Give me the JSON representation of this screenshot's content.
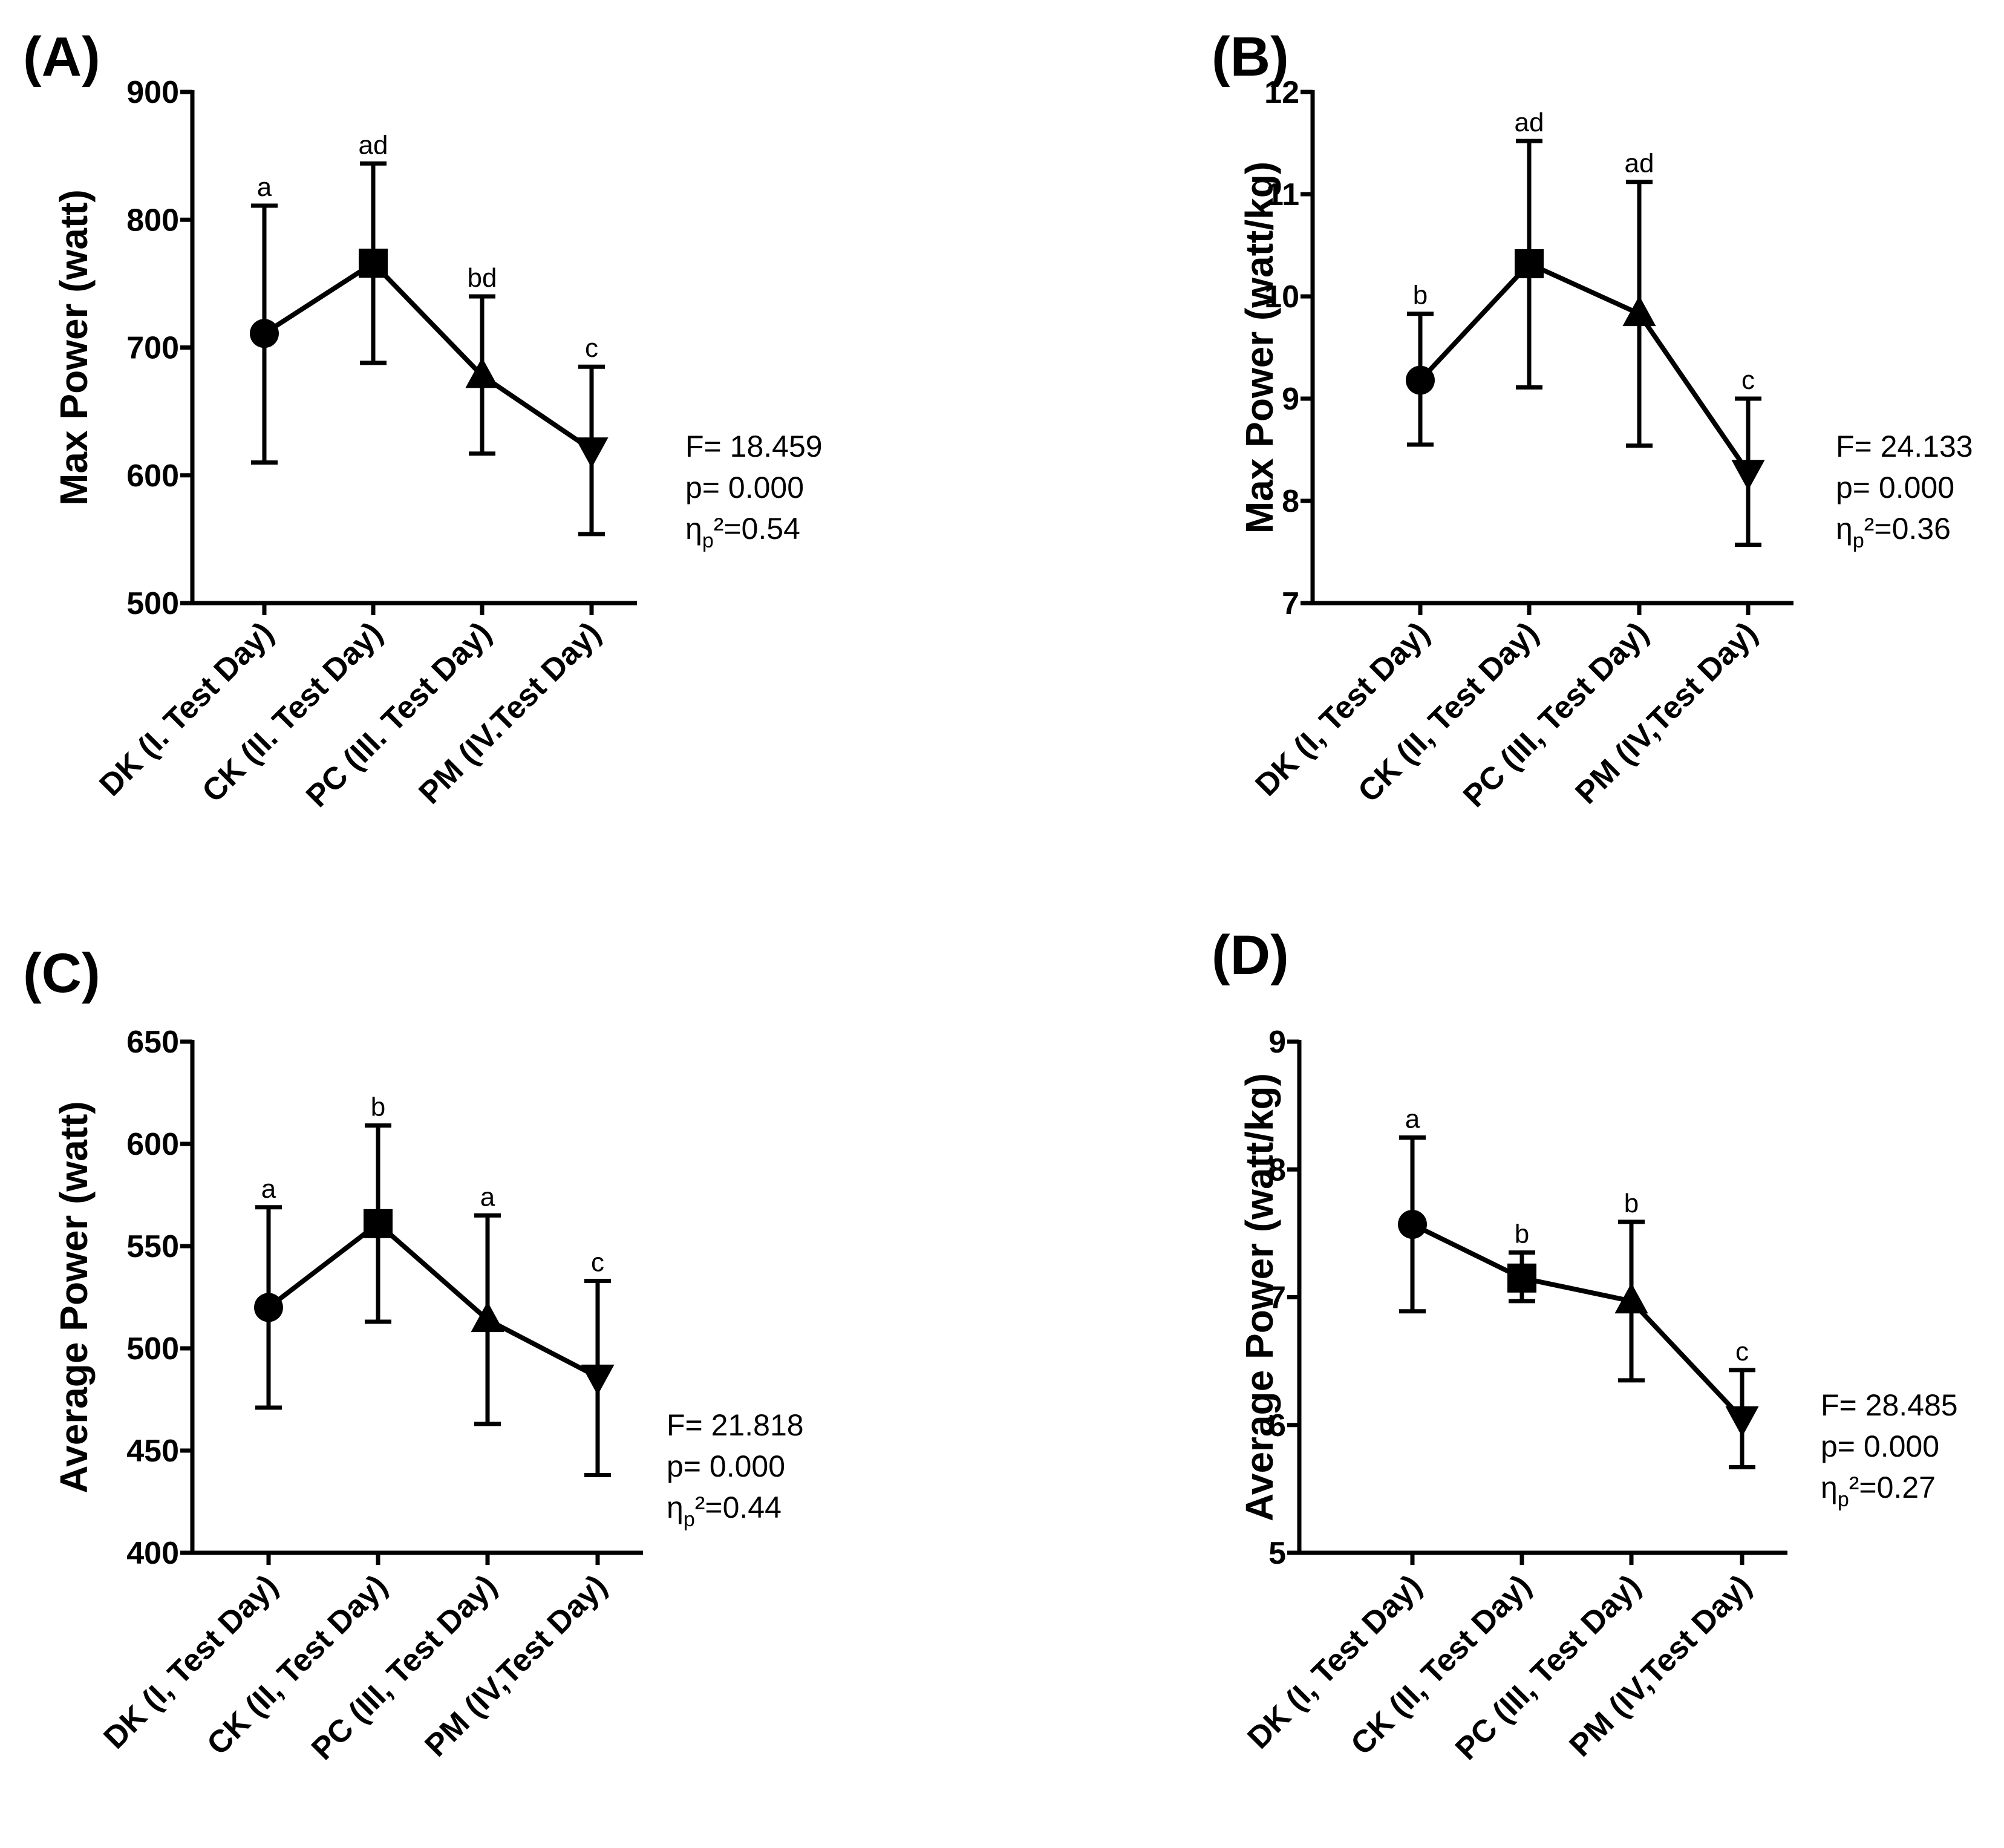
{
  "chart_data": [
    {
      "panel": "(A)",
      "type": "line",
      "ylabel": "Max Power (watt)",
      "ylim": [
        500,
        900
      ],
      "yticks": [
        500,
        600,
        700,
        800,
        900
      ],
      "categories": [
        "DK (I. Test Day)",
        "CK (II. Test Day)",
        "PC (III. Test Day)",
        "PM (IV.Test Day)"
      ],
      "values": [
        711,
        766,
        678,
        620
      ],
      "err_low": [
        610,
        688,
        617,
        554
      ],
      "err_high": [
        811,
        844,
        740,
        685
      ],
      "letters": [
        "a",
        "ad",
        "bd",
        "c"
      ],
      "markers": [
        "circle",
        "square",
        "triangle-up",
        "triangle-down"
      ],
      "stats": {
        "f": "F= 18.459",
        "p": "p= 0.000",
        "eta_prefix": "η",
        "eta_sub": "p",
        "eta_rest": "²=0.54"
      }
    },
    {
      "panel": "(B)",
      "type": "line",
      "ylabel": "Max Power (watt/kg)",
      "ylim": [
        7,
        12
      ],
      "yticks": [
        7,
        8,
        9,
        10,
        11,
        12
      ],
      "categories": [
        "DK (I, Test Day)",
        "CK (II, Test Day)",
        "PC (III, Test Day)",
        "PM (IV,Test Day)"
      ],
      "values": [
        9.18,
        10.32,
        9.83,
        8.28
      ],
      "err_low": [
        8.55,
        9.11,
        8.54,
        7.57
      ],
      "err_high": [
        9.83,
        11.52,
        11.12,
        9.0
      ],
      "letters": [
        "b",
        "ad",
        "ad",
        "c"
      ],
      "markers": [
        "circle",
        "square",
        "triangle-up",
        "triangle-down"
      ],
      "stats": {
        "f": "F= 24.133",
        "p": "p= 0.000",
        "eta_prefix": "η",
        "eta_sub": "p",
        "eta_rest": "²=0.36"
      }
    },
    {
      "panel": "(C)",
      "type": "line",
      "ylabel": "Average Power (watt)",
      "ylim": [
        400,
        650
      ],
      "yticks": [
        400,
        450,
        500,
        550,
        600,
        650
      ],
      "categories": [
        "DK (I, Test Day)",
        "CK (II, Test Day)",
        "PC (III, Test Day)",
        "PM (IV,Test Day)"
      ],
      "values": [
        520,
        561,
        514,
        486
      ],
      "err_low": [
        471,
        513,
        463,
        438
      ],
      "err_high": [
        569,
        609,
        565,
        533
      ],
      "letters": [
        "a",
        "b",
        "a",
        "c"
      ],
      "markers": [
        "circle",
        "square",
        "triangle-up",
        "triangle-down"
      ],
      "stats": {
        "f": "F= 21.818",
        "p": "p= 0.000",
        "eta_prefix": "η",
        "eta_sub": "p",
        "eta_rest": "²=0.44"
      }
    },
    {
      "panel": "(D)",
      "type": "line",
      "ylabel": "Average Power (watt/kg)",
      "ylim": [
        5,
        9
      ],
      "yticks": [
        5,
        6,
        7,
        8,
        9
      ],
      "categories": [
        "DK (I, Test Day)",
        "CK (II, Test Day)",
        "PC (III, Test Day)",
        "PM (IV,Test Day)"
      ],
      "values": [
        7.57,
        7.15,
        6.97,
        6.05
      ],
      "err_low": [
        6.89,
        6.97,
        6.35,
        5.67
      ],
      "err_high": [
        8.25,
        7.35,
        7.59,
        6.43
      ],
      "letters": [
        "a",
        "b",
        "b",
        "c"
      ],
      "markers": [
        "circle",
        "square",
        "triangle-up",
        "triangle-down"
      ],
      "stats": {
        "f": "F= 28.485",
        "p": "p= 0.000",
        "eta_prefix": "η",
        "eta_sub": "p",
        "eta_rest": "²=0.27"
      }
    }
  ]
}
